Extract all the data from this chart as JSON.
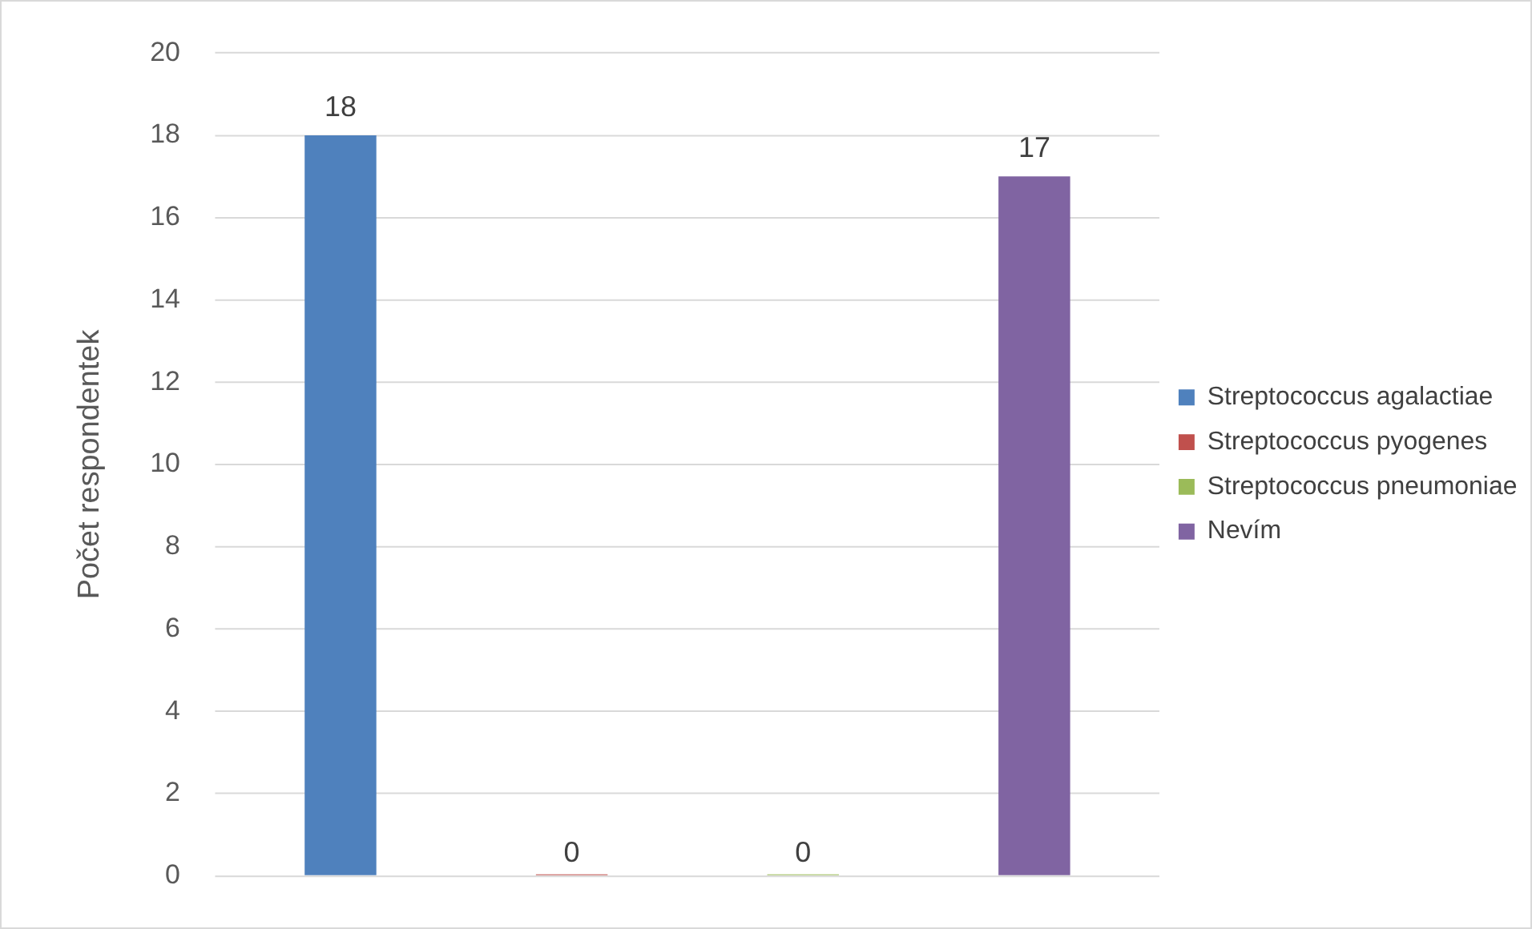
{
  "chart_data": {
    "type": "bar",
    "ylabel": "Počet respondentek",
    "categories": [
      null
    ],
    "series": [
      {
        "name": "Streptococcus agalactiae",
        "color": "#4f81bd",
        "values": [
          18
        ]
      },
      {
        "name": "Streptococcus pyogenes",
        "color": "#c0504d",
        "values": [
          0
        ]
      },
      {
        "name": "Streptococcus pneumoniae",
        "color": "#9bbb59",
        "values": [
          0
        ]
      },
      {
        "name": "Nevím",
        "color": "#8064a2",
        "values": [
          17
        ]
      }
    ],
    "ylim": [
      0,
      20
    ],
    "yticks": [
      0,
      2,
      4,
      6,
      8,
      10,
      12,
      14,
      16,
      18,
      20
    ],
    "grid": "y",
    "legend": "right",
    "data_labels": true
  }
}
